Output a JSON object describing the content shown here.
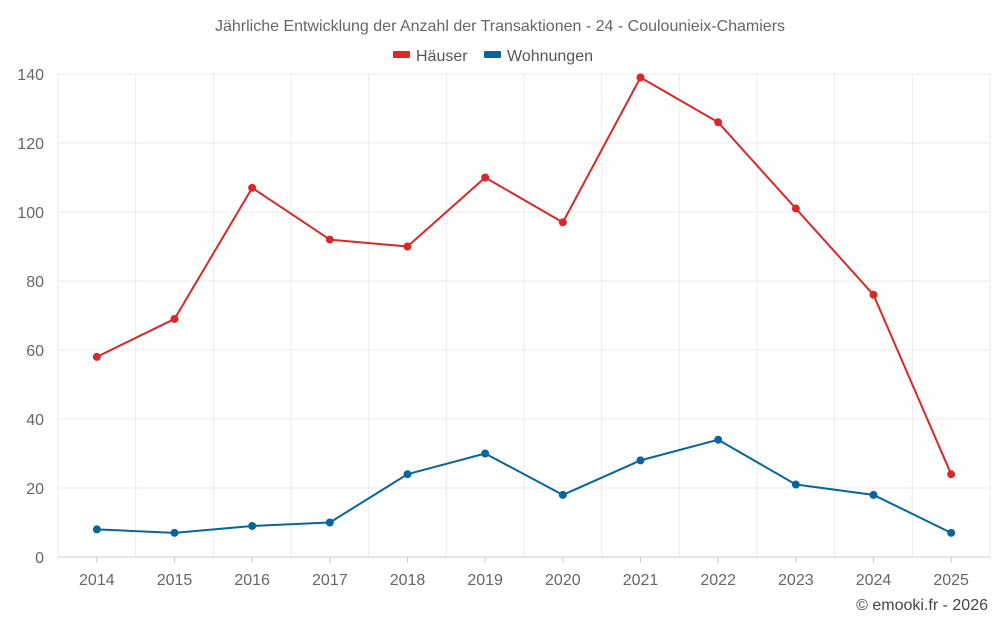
{
  "chart_data": {
    "type": "line",
    "title": "Jährliche Entwicklung der Anzahl der Transaktionen - 24 - Coulounieix-Chamiers",
    "categories": [
      "2014",
      "2015",
      "2016",
      "2017",
      "2018",
      "2019",
      "2020",
      "2021",
      "2022",
      "2023",
      "2024",
      "2025"
    ],
    "series": [
      {
        "name": "Häuser",
        "color": "#d62a2a",
        "values": [
          58,
          69,
          107,
          92,
          90,
          110,
          97,
          139,
          126,
          101,
          76,
          24
        ]
      },
      {
        "name": "Wohnungen",
        "color": "#07659c",
        "values": [
          8,
          7,
          9,
          10,
          24,
          30,
          18,
          28,
          34,
          21,
          18,
          7
        ]
      }
    ],
    "xlabel": "",
    "ylabel": "",
    "ylim": [
      0,
      140
    ],
    "yticks": [
      0,
      20,
      40,
      60,
      80,
      100,
      120,
      140
    ],
    "grid": true,
    "legend_position": "top-center",
    "credit": "© emooki.fr - 2026"
  }
}
